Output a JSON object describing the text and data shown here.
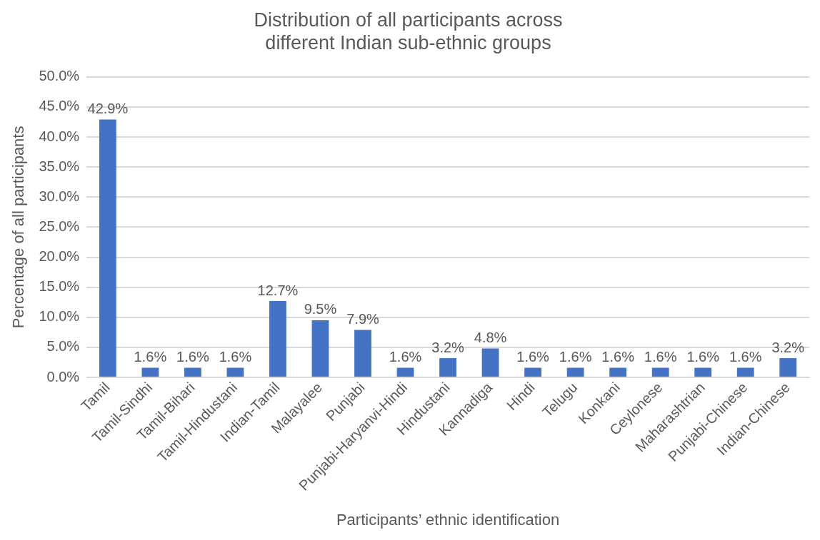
{
  "chart_data": {
    "type": "bar",
    "title": [
      "Distribution of all participants across",
      "different Indian sub-ethnic groups"
    ],
    "xlabel": "Participants’ ethnic identification",
    "ylabel": "Percentage of all participants",
    "categories": [
      "Tamil",
      "Tamil-Sindhi",
      "Tamil-Bihari",
      "Tamil-Hindustani",
      "Indian-Tamil",
      "Malayalee",
      "Punjabi",
      "Punjabi-Haryanvi-Hindi",
      "Hindustani",
      "Kannadiga",
      "Hindi",
      "Telugu",
      "Konkani",
      "Ceylonese",
      "Maharashtrian",
      "Punjabi-Chinese",
      "Indian-Chinese"
    ],
    "values": [
      42.9,
      1.6,
      1.6,
      1.6,
      12.7,
      9.5,
      7.9,
      1.6,
      3.2,
      4.8,
      1.6,
      1.6,
      1.6,
      1.6,
      1.6,
      1.6,
      3.2
    ],
    "value_labels": [
      "42.9%",
      "1.6%",
      "1.6%",
      "1.6%",
      "12.7%",
      "9.5%",
      "7.9%",
      "1.6%",
      "3.2%",
      "4.8%",
      "1.6%",
      "1.6%",
      "1.6%",
      "1.6%",
      "1.6%",
      "1.6%",
      "3.2%"
    ],
    "color": "#4472c4",
    "ylim": [
      0,
      50
    ],
    "yticks": [
      {
        "value": 0,
        "label": "0.0%"
      },
      {
        "value": 5,
        "label": "5.0%"
      },
      {
        "value": 10,
        "label": "10.0%"
      },
      {
        "value": 15,
        "label": "15.0%"
      },
      {
        "value": 20,
        "label": "20.0%"
      },
      {
        "value": 25,
        "label": "25.0%"
      },
      {
        "value": 30,
        "label": "30.0%"
      },
      {
        "value": 35,
        "label": "35.0%"
      },
      {
        "value": 40,
        "label": "40.0%"
      },
      {
        "value": 45,
        "label": "45.0%"
      },
      {
        "value": 50,
        "label": "50.0%"
      }
    ],
    "grid": "y",
    "legend": false
  }
}
